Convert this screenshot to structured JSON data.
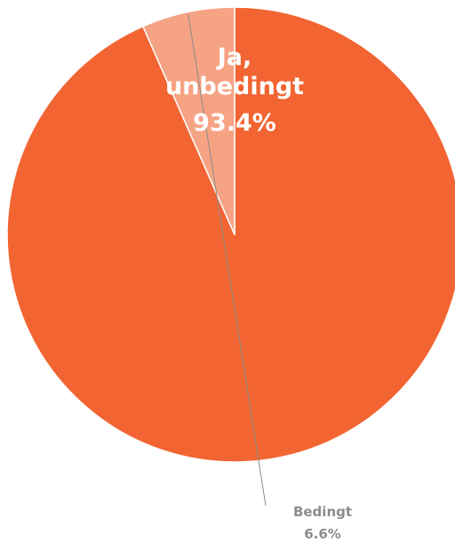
{
  "chart_data": {
    "type": "pie",
    "title": "",
    "start": "12 o'clock",
    "direction": "clockwise",
    "slices": [
      {
        "label_lines": [
          "Ja,",
          "unbedingt"
        ],
        "value": 93.4,
        "value_label": "93.4%",
        "color": "#f26532",
        "label_position": "inside"
      },
      {
        "label_lines": [
          "Bedingt"
        ],
        "value": 6.6,
        "value_label": "6.6%",
        "color": "#f6a384",
        "label_position": "outside-with-leader-line"
      }
    ]
  }
}
